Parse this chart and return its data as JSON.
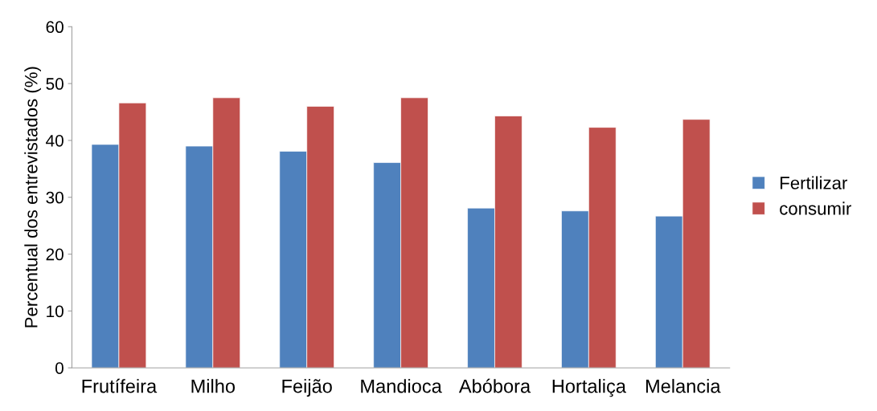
{
  "chart_data": {
    "type": "bar",
    "ylabel": "Percentual dos entrevistados (%)",
    "categories": [
      "Frutífeira",
      "Milho",
      "Feijão",
      "Mandioca",
      "Abóbora",
      "Hortaliça",
      "Melancia"
    ],
    "series": [
      {
        "name": "Fertilizar",
        "color": "#4f81bd",
        "values": [
          39.3,
          39.0,
          38.1,
          36.1,
          28.1,
          27.6,
          26.7
        ]
      },
      {
        "name": "consumir",
        "color": "#c0504d",
        "values": [
          46.6,
          47.5,
          46.0,
          47.5,
          44.3,
          42.3,
          43.7
        ]
      }
    ],
    "ylim": [
      0,
      60
    ],
    "yticks": [
      0,
      10,
      20,
      30,
      40,
      50,
      60
    ],
    "grid": false,
    "legend": "right"
  }
}
